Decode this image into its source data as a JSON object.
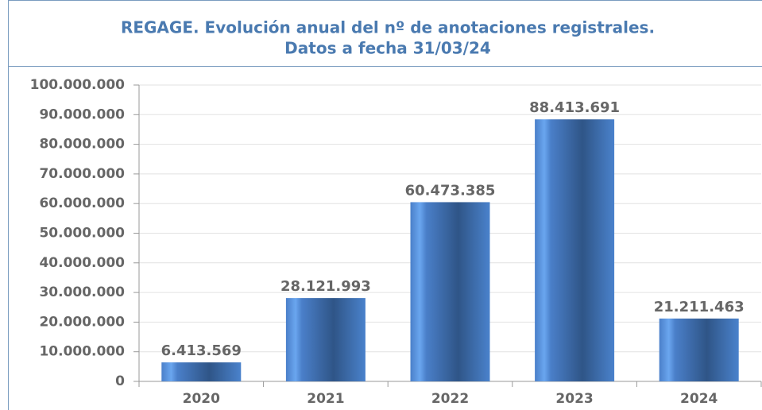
{
  "chart_data": {
    "type": "bar",
    "title": "REGAGE. Evolución anual del nº de anotaciones registrales.",
    "subtitle": "Datos a fecha 31/03/24",
    "categories": [
      "2020",
      "2021",
      "2022",
      "2023",
      "2024"
    ],
    "values": [
      6413569,
      28121993,
      60473385,
      88413691,
      21211463
    ],
    "value_labels": [
      "6.413.569",
      "28.121.993",
      "60.473.385",
      "88.413.691",
      "21.211.463"
    ],
    "color": "#4a7fc9",
    "ylim": [
      0,
      100000000
    ],
    "yticks": [
      0,
      {
        "value": 10000000,
        "label": "10.000.000"
      },
      {
        "value": 20000000,
        "label": "20.000.000"
      },
      {
        "value": 30000000,
        "label": "30.000.000"
      },
      {
        "value": 40000000,
        "label": "40.000.000"
      },
      {
        "value": 50000000,
        "label": "50.000.000"
      },
      {
        "value": 60000000,
        "label": "60.000.000"
      },
      {
        "value": 70000000,
        "label": "70.000.000"
      },
      {
        "value": 80000000,
        "label": "80.000.000"
      },
      {
        "value": 90000000,
        "label": "90.000.000"
      },
      {
        "value": 100000000,
        "label": "100.000.000"
      }
    ],
    "grid": true
  }
}
